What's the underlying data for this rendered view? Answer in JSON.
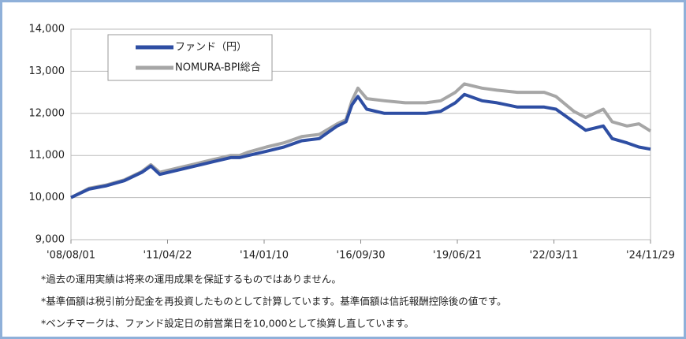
{
  "chart_data": {
    "type": "line",
    "x": [
      "2008-08-01",
      "2009-02-01",
      "2009-08-01",
      "2010-02-01",
      "2010-08-01",
      "2010-11-01",
      "2011-02-01",
      "2011-08-01",
      "2012-02-01",
      "2012-08-01",
      "2013-02-01",
      "2013-05-01",
      "2013-08-01",
      "2014-02-01",
      "2014-08-01",
      "2015-02-01",
      "2015-08-01",
      "2016-02-01",
      "2016-05-01",
      "2016-07-01",
      "2016-09-01",
      "2016-12-01",
      "2017-06-01",
      "2018-01-01",
      "2018-08-01",
      "2019-01-01",
      "2019-06-01",
      "2019-09-01",
      "2020-03-01",
      "2020-08-01",
      "2021-03-01",
      "2021-12-01",
      "2022-04-01",
      "2022-10-01",
      "2023-02-01",
      "2023-08-01",
      "2023-11-01",
      "2024-04-01",
      "2024-08-01",
      "2024-11-29"
    ],
    "series": [
      {
        "name": "ファンド（円）",
        "color": "#2e4ea3",
        "values": [
          10000,
          10200,
          10280,
          10400,
          10600,
          10750,
          10550,
          10650,
          10750,
          10850,
          10950,
          10950,
          11000,
          11100,
          11200,
          11350,
          11400,
          11700,
          11800,
          12200,
          12400,
          12100,
          12000,
          12000,
          12000,
          12050,
          12250,
          12450,
          12300,
          12250,
          12150,
          12150,
          12100,
          11800,
          11600,
          11700,
          11400,
          11300,
          11200,
          11150
        ]
      },
      {
        "name": "NOMURA-BPI総合",
        "color": "#a6a6a6",
        "values": [
          10000,
          10220,
          10300,
          10420,
          10620,
          10780,
          10600,
          10700,
          10800,
          10900,
          11000,
          11000,
          11080,
          11200,
          11300,
          11450,
          11500,
          11750,
          11850,
          12300,
          12600,
          12350,
          12300,
          12250,
          12250,
          12300,
          12500,
          12700,
          12600,
          12550,
          12500,
          12500,
          12400,
          12050,
          11900,
          12100,
          11800,
          11700,
          11750,
          11580
        ]
      }
    ],
    "ylim": [
      9000,
      14000
    ],
    "yticks": [
      {
        "value": 9000,
        "label": "9,000"
      },
      {
        "value": 10000,
        "label": "10,000"
      },
      {
        "value": 11000,
        "label": "11,000"
      },
      {
        "value": 12000,
        "label": "12,000"
      },
      {
        "value": 13000,
        "label": "13,000"
      },
      {
        "value": 14000,
        "label": "14,000"
      }
    ],
    "xlim": [
      "2008-08-01",
      "2024-11-29"
    ],
    "xticks": [
      {
        "value": "2008-08-01",
        "label": "'08/08/01"
      },
      {
        "value": "2011-04-22",
        "label": "'11/04/22"
      },
      {
        "value": "2014-01-10",
        "label": "'14/01/10"
      },
      {
        "value": "2016-09-30",
        "label": "'16/09/30"
      },
      {
        "value": "2019-06-21",
        "label": "'19/06/21"
      },
      {
        "value": "2022-03-11",
        "label": "'22/03/11"
      },
      {
        "value": "2024-11-29",
        "label": "'24/11/29"
      }
    ],
    "grid": true,
    "legend": "upper left",
    "notes": [
      "*過去の運用実績は将来の運用成果を保証するものではありません。",
      "*基準価額は税引前分配金を再投資したものとして計算しています。基準価額は信託報酬控除後の値です。",
      "*ベンチマークは、ファンド設定日の前営業日を10,000として換算し直しています。"
    ]
  }
}
